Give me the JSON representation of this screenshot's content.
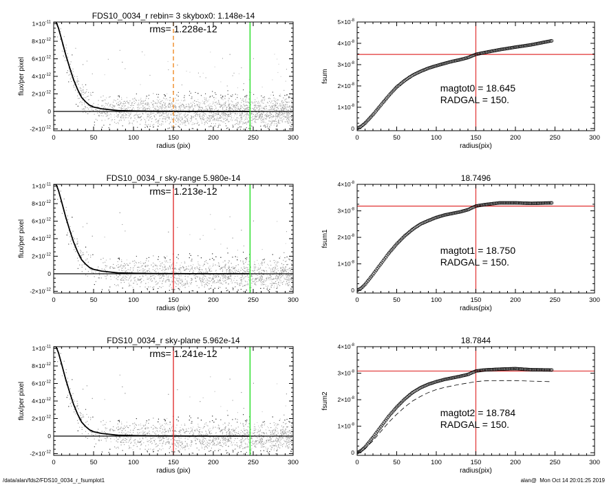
{
  "footer": {
    "left": "/data/alan/fds2/FDS10_0034_r_fsumplot1",
    "right": "alan@  Mon Oct 14 20:01:25 2019"
  },
  "colors": {
    "axis": "#000000",
    "profile_line": "#000000",
    "points_dark": "#333333",
    "points_gray": "#999999",
    "points_light": "#c8c8c8",
    "red_line": "#e03030",
    "green_line": "#22dd22",
    "orange_dash": "#f08a24"
  },
  "chart_data": [
    {
      "type": "scatter",
      "panel": "profile-1",
      "title": "FDS10_0034_r rebin= 3    skybox0:  1.148e-14",
      "annotation": "rms= 1.228e-12",
      "xlabel": "radius (pix)",
      "ylabel": "flux/per pixel",
      "xlim": [
        0,
        300
      ],
      "ylim": [
        -2.2e-12,
        1.02e-11
      ],
      "xticks": [
        0,
        50,
        100,
        150,
        200,
        250,
        300
      ],
      "yticks": [
        {
          "value": -2e-12,
          "label": "-2×10",
          "exp": "-12"
        },
        {
          "value": 0,
          "label": "0",
          "exp": ""
        },
        {
          "value": 2e-12,
          "label": "2×10",
          "exp": "-12"
        },
        {
          "value": 4e-12,
          "label": "4×10",
          "exp": "-12"
        },
        {
          "value": 6e-12,
          "label": "6×10",
          "exp": "-12"
        },
        {
          "value": 8e-12,
          "label": "8×10",
          "exp": "-12"
        },
        {
          "value": 1e-11,
          "label": "1×10",
          "exp": "-11"
        }
      ],
      "vlines": [
        {
          "x": 150,
          "color": "orange",
          "style": "dashed"
        },
        {
          "x": 246,
          "color": "green",
          "style": "solid"
        }
      ],
      "sky_level": 0,
      "profile": {
        "x": [
          0,
          3,
          6,
          10,
          15,
          20,
          25,
          30,
          35,
          40,
          45,
          50,
          60,
          70,
          80,
          100,
          120,
          150,
          200,
          246
        ],
        "y": [
          1.1e-11,
          1.02e-11,
          9.5e-12,
          8.2e-12,
          6.5e-12,
          5e-12,
          3.6e-12,
          2.5e-12,
          1.6e-12,
          1.1e-12,
          7e-13,
          5e-13,
          3e-13,
          2e-13,
          1e-13,
          5e-14,
          2e-14,
          1e-14,
          0,
          0
        ]
      }
    },
    {
      "type": "line",
      "panel": "fsum-1",
      "title": "",
      "xlabel": "radius(pix)",
      "ylabel": "fsum",
      "xlim": [
        0,
        300
      ],
      "ylim": [
        -1e-09,
        5e-08
      ],
      "xticks": [
        0,
        50,
        100,
        150,
        200,
        250,
        300
      ],
      "yticks": [
        {
          "value": 0,
          "label": "0",
          "exp": ""
        },
        {
          "value": 1e-08,
          "label": "1×10",
          "exp": "-8"
        },
        {
          "value": 2e-08,
          "label": "2×10",
          "exp": "-8"
        },
        {
          "value": 3e-08,
          "label": "3×10",
          "exp": "-8"
        },
        {
          "value": 4e-08,
          "label": "4×10",
          "exp": "-8"
        },
        {
          "value": 5e-08,
          "label": "5×10",
          "exp": "-8"
        }
      ],
      "crosshair": {
        "x": 150,
        "y": 3.48e-08
      },
      "annotations": [
        "magtot0 =  18.645",
        "RADGAL =    150."
      ],
      "series": [
        {
          "style": "circles",
          "x": [
            0,
            5,
            10,
            20,
            30,
            40,
            50,
            60,
            70,
            80,
            90,
            100,
            110,
            120,
            130,
            140,
            150,
            160,
            180,
            200,
            220,
            246
          ],
          "y": [
            0,
            1e-09,
            2.5e-09,
            6.5e-09,
            1.1e-08,
            1.55e-08,
            1.95e-08,
            2.25e-08,
            2.5e-08,
            2.68e-08,
            2.83e-08,
            2.95e-08,
            3.05e-08,
            3.15e-08,
            3.23e-08,
            3.33e-08,
            3.48e-08,
            3.56e-08,
            3.7e-08,
            3.82e-08,
            3.93e-08,
            4.12e-08
          ]
        }
      ]
    },
    {
      "type": "scatter",
      "panel": "profile-2",
      "title": "FDS10_0034_r sky-range  5.980e-14",
      "annotation": "rms= 1.213e-12",
      "xlabel": "radius (pix)",
      "ylabel": "flux/per pixel",
      "xlim": [
        0,
        300
      ],
      "ylim": [
        -2.2e-12,
        1.02e-11
      ],
      "xticks": [
        0,
        50,
        100,
        150,
        200,
        250,
        300
      ],
      "yticks": [
        {
          "value": -2e-12,
          "label": "-2×10",
          "exp": "-12"
        },
        {
          "value": 0,
          "label": "0",
          "exp": ""
        },
        {
          "value": 2e-12,
          "label": "2×10",
          "exp": "-12"
        },
        {
          "value": 4e-12,
          "label": "4×10",
          "exp": "-12"
        },
        {
          "value": 6e-12,
          "label": "6×10",
          "exp": "-12"
        },
        {
          "value": 8e-12,
          "label": "8×10",
          "exp": "-12"
        },
        {
          "value": 1e-11,
          "label": "1×10",
          "exp": "-11"
        }
      ],
      "vlines": [
        {
          "x": 150,
          "color": "red",
          "style": "solid"
        },
        {
          "x": 246,
          "color": "green",
          "style": "solid"
        }
      ],
      "sky_level": 0,
      "profile": {
        "x": [
          0,
          3,
          6,
          10,
          15,
          20,
          25,
          30,
          35,
          40,
          45,
          50,
          60,
          70,
          80,
          100,
          120,
          150,
          200,
          246
        ],
        "y": [
          1.1e-11,
          1.02e-11,
          9.5e-12,
          8.2e-12,
          6.5e-12,
          5e-12,
          3.6e-12,
          2.5e-12,
          1.6e-12,
          1.1e-12,
          7e-13,
          5e-13,
          3e-13,
          2e-13,
          1e-13,
          5e-14,
          2e-14,
          1e-14,
          0,
          0
        ]
      }
    },
    {
      "type": "line",
      "panel": "fsum-2",
      "title": "18.7496",
      "xlabel": "radius(pix)",
      "ylabel": "fsum1",
      "xlim": [
        0,
        300
      ],
      "ylim": [
        -1e-09,
        4e-08
      ],
      "xticks": [
        0,
        50,
        100,
        150,
        200,
        250,
        300
      ],
      "yticks": [
        {
          "value": 0,
          "label": "0",
          "exp": ""
        },
        {
          "value": 1e-08,
          "label": "1×10",
          "exp": "-8"
        },
        {
          "value": 2e-08,
          "label": "2×10",
          "exp": "-8"
        },
        {
          "value": 3e-08,
          "label": "3×10",
          "exp": "-8"
        },
        {
          "value": 4e-08,
          "label": "4×10",
          "exp": "-8"
        }
      ],
      "crosshair": {
        "x": 150,
        "y": 3.18e-08
      },
      "annotations": [
        "magtot1 =  18.750",
        "RADGAL =    150."
      ],
      "series": [
        {
          "style": "circles",
          "x": [
            0,
            5,
            10,
            20,
            30,
            40,
            50,
            60,
            70,
            80,
            90,
            100,
            110,
            120,
            130,
            140,
            150,
            160,
            180,
            200,
            220,
            246
          ],
          "y": [
            0,
            8e-10,
            2.2e-09,
            6e-09,
            1e-08,
            1.4e-08,
            1.75e-08,
            2.05e-08,
            2.3e-08,
            2.5e-08,
            2.63e-08,
            2.75e-08,
            2.84e-08,
            2.9e-08,
            2.96e-08,
            3.04e-08,
            3.18e-08,
            3.23e-08,
            3.3e-08,
            3.3e-08,
            3.28e-08,
            3.3e-08
          ]
        }
      ]
    },
    {
      "type": "scatter",
      "panel": "profile-3",
      "title": "FDS10_0034_r sky-plane  5.962e-14",
      "annotation": "rms= 1.241e-12",
      "xlabel": "radius (pix)",
      "ylabel": "flux/per pixel",
      "xlim": [
        0,
        300
      ],
      "ylim": [
        -2.2e-12,
        1.02e-11
      ],
      "xticks": [
        0,
        50,
        100,
        150,
        200,
        250,
        300
      ],
      "yticks": [
        {
          "value": -2e-12,
          "label": "-2×10",
          "exp": "-12"
        },
        {
          "value": 0,
          "label": "0",
          "exp": ""
        },
        {
          "value": 2e-12,
          "label": "2×10",
          "exp": "-12"
        },
        {
          "value": 4e-12,
          "label": "4×10",
          "exp": "-12"
        },
        {
          "value": 6e-12,
          "label": "6×10",
          "exp": "-12"
        },
        {
          "value": 8e-12,
          "label": "8×10",
          "exp": "-12"
        },
        {
          "value": 1e-11,
          "label": "1×10",
          "exp": "-11"
        }
      ],
      "vlines": [
        {
          "x": 150,
          "color": "red",
          "style": "solid"
        },
        {
          "x": 246,
          "color": "green",
          "style": "solid"
        }
      ],
      "sky_level": 0,
      "profile": {
        "x": [
          0,
          3,
          6,
          10,
          15,
          20,
          25,
          30,
          35,
          40,
          45,
          50,
          60,
          70,
          80,
          100,
          120,
          150,
          200,
          246
        ],
        "y": [
          1.1e-11,
          1.02e-11,
          9.5e-12,
          8.2e-12,
          6.5e-12,
          5e-12,
          3.6e-12,
          2.5e-12,
          1.6e-12,
          1.1e-12,
          7e-13,
          5e-13,
          3e-13,
          2e-13,
          1e-13,
          5e-14,
          2e-14,
          1e-14,
          0,
          0
        ]
      }
    },
    {
      "type": "line",
      "panel": "fsum-3",
      "title": "18.7844",
      "xlabel": "radius(pix)",
      "ylabel": "fsum2",
      "xlim": [
        0,
        300
      ],
      "ylim": [
        -1e-09,
        4e-08
      ],
      "xticks": [
        0,
        50,
        100,
        150,
        200,
        250,
        300
      ],
      "yticks": [
        {
          "value": 0,
          "label": "0",
          "exp": ""
        },
        {
          "value": 1e-08,
          "label": "1×10",
          "exp": "-8"
        },
        {
          "value": 2e-08,
          "label": "2×10",
          "exp": "-8"
        },
        {
          "value": 3e-08,
          "label": "3×10",
          "exp": "-8"
        },
        {
          "value": 4e-08,
          "label": "4×10",
          "exp": "-8"
        }
      ],
      "crosshair": {
        "x": 150,
        "y": 3.08e-08
      },
      "annotations": [
        "magtot2 =  18.784",
        "RADGAL =    150."
      ],
      "series": [
        {
          "style": "circles",
          "x": [
            0,
            5,
            10,
            20,
            30,
            40,
            50,
            60,
            70,
            80,
            90,
            100,
            110,
            120,
            130,
            140,
            150,
            160,
            180,
            200,
            220,
            246
          ],
          "y": [
            0,
            8e-10,
            2.1e-09,
            5.8e-09,
            9.8e-09,
            1.38e-08,
            1.72e-08,
            2.02e-08,
            2.27e-08,
            2.45e-08,
            2.58e-08,
            2.68e-08,
            2.76e-08,
            2.82e-08,
            2.88e-08,
            2.95e-08,
            3.08e-08,
            3.12e-08,
            3.15e-08,
            3.17e-08,
            3.13e-08,
            3.12e-08
          ]
        },
        {
          "style": "dashed",
          "x": [
            0,
            10,
            20,
            30,
            40,
            50,
            60,
            70,
            80,
            90,
            100,
            110,
            120,
            130,
            140,
            150,
            160,
            180,
            200,
            220,
            246
          ],
          "y": [
            0,
            1.5e-09,
            4.5e-09,
            8e-09,
            1.15e-08,
            1.45e-08,
            1.72e-08,
            1.95e-08,
            2.12e-08,
            2.27e-08,
            2.38e-08,
            2.46e-08,
            2.52e-08,
            2.58e-08,
            2.63e-08,
            2.68e-08,
            2.71e-08,
            2.72e-08,
            2.72e-08,
            2.7e-08,
            2.68e-08
          ]
        }
      ]
    }
  ]
}
